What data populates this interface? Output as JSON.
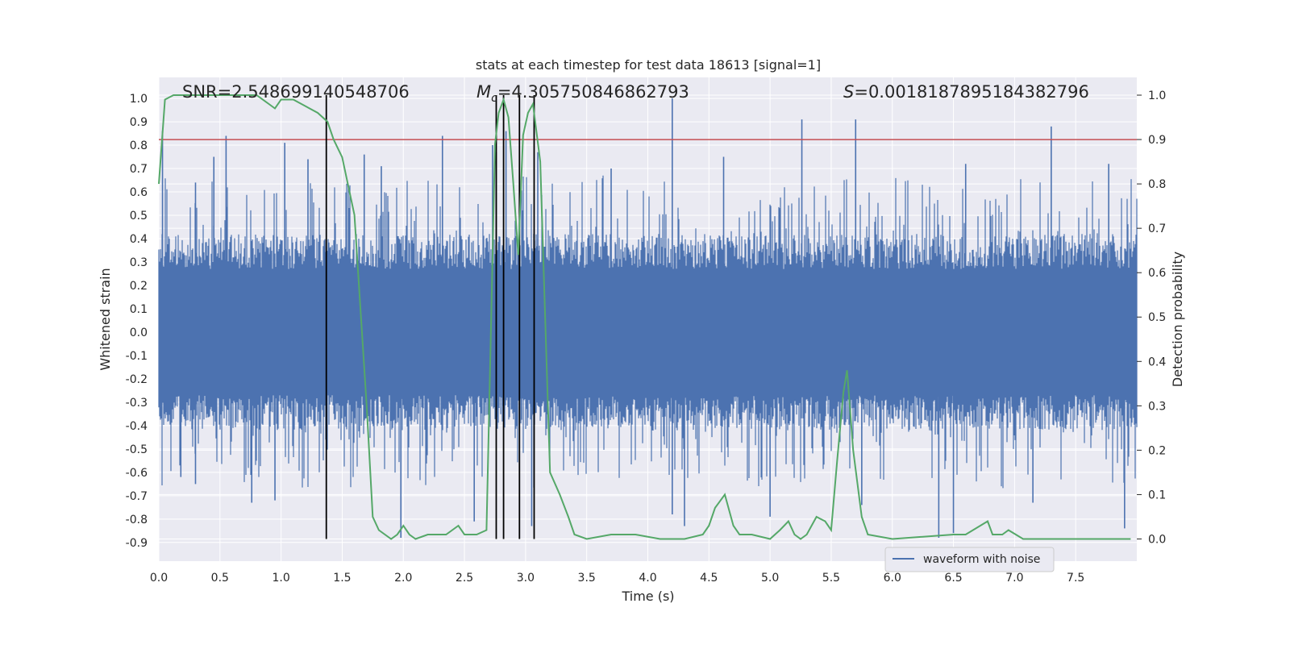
{
  "chart_data": {
    "type": "line",
    "title": "stats at each timestep for test data 18613 [signal=1]",
    "xlabel": "Time (s)",
    "ylabel_left": "Whitened strain",
    "ylabel_right": "Detection probability",
    "xlim": [
      0.0,
      8.0
    ],
    "ylim_left": [
      -0.98,
      1.09
    ],
    "ylim_right": [
      -0.05,
      1.04
    ],
    "x_ticks": [
      "0.0",
      "0.5",
      "1.0",
      "1.5",
      "2.0",
      "2.5",
      "3.0",
      "3.5",
      "4.0",
      "4.5",
      "5.0",
      "5.5",
      "6.0",
      "6.5",
      "7.0",
      "7.5"
    ],
    "y_left_ticks": [
      "1.0",
      "0.9",
      "0.8",
      "0.7",
      "0.6",
      "0.5",
      "0.4",
      "0.3",
      "0.2",
      "0.1",
      "0.0",
      "-0.1",
      "-0.2",
      "-0.3",
      "-0.4",
      "-0.5",
      "-0.6",
      "-0.7",
      "-0.8",
      "-0.9"
    ],
    "y_right_ticks": [
      "1.0",
      "0.9",
      "0.8",
      "0.7",
      "0.6",
      "0.5",
      "0.4",
      "0.3",
      "0.2",
      "0.1",
      "0.0"
    ],
    "grid": true,
    "legend_position": "lower-right",
    "annotations": {
      "snr": "SNR=2.548699140548706",
      "mc_symbol": "M",
      "mc_sub": "c",
      "mc_value": "=4.305750846862793",
      "s_symbol": "S",
      "s_value": "=0.0018187895184382796"
    },
    "series": [
      {
        "name": "waveform with noise",
        "kind": "noise",
        "color": "#4c72b0",
        "typical_range": [
          -0.42,
          0.42
        ],
        "spikes": [
          {
            "x": 0.03,
            "y": 0.86
          },
          {
            "x": 0.3,
            "y": 0.64
          },
          {
            "x": 0.45,
            "y": 0.75
          },
          {
            "x": 0.55,
            "y": 0.84
          },
          {
            "x": 1.03,
            "y": 0.81
          },
          {
            "x": 1.22,
            "y": 0.74
          },
          {
            "x": 1.68,
            "y": 0.76
          },
          {
            "x": 1.82,
            "y": 0.71
          },
          {
            "x": 2.32,
            "y": 0.84
          },
          {
            "x": 2.73,
            "y": 0.8
          },
          {
            "x": 2.76,
            "y": 0.77
          },
          {
            "x": 2.84,
            "y": 0.86
          },
          {
            "x": 3.1,
            "y": 0.77
          },
          {
            "x": 3.7,
            "y": 0.7
          },
          {
            "x": 4.2,
            "y": 1.0
          },
          {
            "x": 4.62,
            "y": 0.75
          },
          {
            "x": 5.26,
            "y": 0.91
          },
          {
            "x": 5.7,
            "y": 0.91
          },
          {
            "x": 6.6,
            "y": 0.72
          },
          {
            "x": 7.3,
            "y": 0.88
          },
          {
            "x": 7.77,
            "y": 0.72
          },
          {
            "x": 0.18,
            "y": -0.62
          },
          {
            "x": 0.3,
            "y": -0.65
          },
          {
            "x": 0.76,
            "y": -0.73
          },
          {
            "x": 0.95,
            "y": -0.72
          },
          {
            "x": 1.98,
            "y": -0.88
          },
          {
            "x": 2.58,
            "y": -0.81
          },
          {
            "x": 3.05,
            "y": -0.83
          },
          {
            "x": 4.2,
            "y": -0.78
          },
          {
            "x": 4.3,
            "y": -0.83
          },
          {
            "x": 5.0,
            "y": -0.79
          },
          {
            "x": 5.75,
            "y": -0.74
          },
          {
            "x": 6.38,
            "y": -0.88
          },
          {
            "x": 6.5,
            "y": -0.86
          },
          {
            "x": 7.15,
            "y": -0.73
          },
          {
            "x": 7.9,
            "y": -0.84
          }
        ]
      },
      {
        "kind": "probability",
        "color": "#55a868",
        "axis": "right",
        "x": [
          0.0,
          0.05,
          0.12,
          0.2,
          0.5,
          0.8,
          0.9,
          0.95,
          1.0,
          1.1,
          1.3,
          1.38,
          1.43,
          1.5,
          1.6,
          1.7,
          1.75,
          1.8,
          1.9,
          1.95,
          2.0,
          2.05,
          2.1,
          2.2,
          2.35,
          2.45,
          2.5,
          2.6,
          2.68,
          2.75,
          2.78,
          2.82,
          2.86,
          2.9,
          2.94,
          2.98,
          3.02,
          3.06,
          3.12,
          3.2,
          3.28,
          3.35,
          3.4,
          3.5,
          3.7,
          3.9,
          4.1,
          4.3,
          4.45,
          4.5,
          4.55,
          4.63,
          4.7,
          4.75,
          4.85,
          5.0,
          5.08,
          5.15,
          5.2,
          5.25,
          5.3,
          5.38,
          5.45,
          5.5,
          5.55,
          5.6,
          5.63,
          5.68,
          5.75,
          5.8,
          6.0,
          6.5,
          6.6,
          6.72,
          6.78,
          6.82,
          6.9,
          6.95,
          7.07,
          7.3,
          7.95
        ],
        "y": [
          0.8,
          0.99,
          1.0,
          1.0,
          1.0,
          1.0,
          0.98,
          0.97,
          0.99,
          0.99,
          0.96,
          0.94,
          0.9,
          0.86,
          0.73,
          0.3,
          0.05,
          0.02,
          0.0,
          0.01,
          0.03,
          0.01,
          0.0,
          0.01,
          0.01,
          0.03,
          0.01,
          0.01,
          0.02,
          0.89,
          0.96,
          0.99,
          0.95,
          0.8,
          0.64,
          0.91,
          0.96,
          0.98,
          0.85,
          0.15,
          0.1,
          0.05,
          0.01,
          0.0,
          0.01,
          0.01,
          0.0,
          0.0,
          0.01,
          0.03,
          0.07,
          0.1,
          0.03,
          0.01,
          0.01,
          0.0,
          0.02,
          0.04,
          0.01,
          0.0,
          0.01,
          0.05,
          0.04,
          0.02,
          0.18,
          0.33,
          0.38,
          0.2,
          0.05,
          0.01,
          0.0,
          0.01,
          0.01,
          0.03,
          0.04,
          0.01,
          0.01,
          0.02,
          0.0,
          0.0,
          0.0
        ]
      }
    ],
    "hlines": [
      {
        "axis": "right",
        "y": 0.9,
        "color": "#c44e52"
      }
    ],
    "vlines": [
      {
        "x": 1.37
      },
      {
        "x": 2.76
      },
      {
        "x": 2.82
      },
      {
        "x": 2.95
      },
      {
        "x": 3.07
      }
    ],
    "vline_range_right": [
      0.0,
      1.0
    ]
  }
}
